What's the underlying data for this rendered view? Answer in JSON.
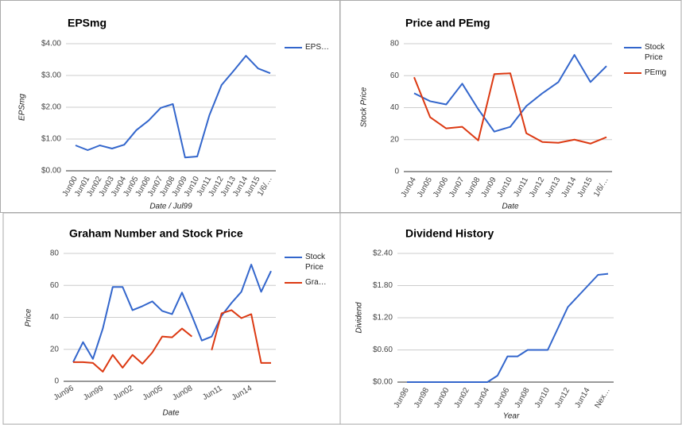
{
  "chart_data": [
    {
      "type": "line",
      "title": "EPSmg",
      "x_label": "Date / Jul99",
      "y_label": "EPSmg",
      "categories": [
        "Jun00",
        "Jun01",
        "Jun02",
        "Jun03",
        "Jun04",
        "Jun05",
        "Jun06",
        "Jun07",
        "Jun08",
        "Jun09",
        "Jun10",
        "Jun11",
        "Jun12",
        "Jun13",
        "Jun14",
        "Jun15",
        "1/6/…"
      ],
      "series": [
        {
          "name": "EPS…",
          "color": "#3366cc",
          "values": [
            0.8,
            0.65,
            0.8,
            0.7,
            0.82,
            1.28,
            1.58,
            1.98,
            2.1,
            0.42,
            0.45,
            1.75,
            2.7,
            3.15,
            3.62,
            3.22,
            3.07
          ]
        }
      ],
      "ylim": [
        0,
        4
      ],
      "yticks": [
        {
          "value": 0,
          "label": "$0.00"
        },
        {
          "value": 1,
          "label": "$1.00"
        },
        {
          "value": 2,
          "label": "$2.00"
        },
        {
          "value": 3,
          "label": "$3.00"
        },
        {
          "value": 4,
          "label": "$4.00"
        }
      ],
      "grid": true,
      "legend": "right"
    },
    {
      "type": "line",
      "title": "Price and PEmg",
      "x_label": "Date",
      "y_label": "Stock Price",
      "categories": [
        "Jun04",
        "Jun05",
        "Jun06",
        "Jun07",
        "Jun08",
        "Jun09",
        "Jun10",
        "Jun11",
        "Jun12",
        "Jun13",
        "Jun14",
        "Jun15",
        "1/6/…"
      ],
      "series": [
        {
          "name": "Stock Price",
          "color": "#3366cc",
          "values": [
            49,
            44,
            42,
            55,
            39,
            25,
            28,
            41,
            49,
            56,
            73,
            56,
            66
          ]
        },
        {
          "name": "PEmg",
          "color": "#dc3912",
          "values": [
            59,
            34,
            27,
            28,
            19.5,
            61,
            61.5,
            24,
            18.5,
            18,
            20,
            17.5,
            21.5
          ]
        }
      ],
      "ylim": [
        0,
        80
      ],
      "yticks": [
        0,
        20,
        40,
        60,
        80
      ],
      "grid": true,
      "legend": "right"
    },
    {
      "type": "line",
      "title": "Graham Number and Stock Price",
      "x_label": "Date",
      "y_label": "Price",
      "categories": [
        "Jun96",
        null,
        null,
        "Jun99",
        null,
        null,
        "Jun02",
        null,
        null,
        "Jun05",
        null,
        null,
        "Jun08",
        null,
        null,
        "Jun11",
        null,
        null,
        "Jun14",
        null,
        null
      ],
      "series": [
        {
          "name": "Stock Price",
          "color": "#3366cc",
          "values": [
            12,
            24.5,
            14,
            33,
            59,
            59,
            44.5,
            47,
            50,
            44,
            42,
            55.5,
            41,
            25.5,
            28,
            41,
            49,
            56,
            73,
            56,
            69
          ]
        },
        {
          "name": "Gra…",
          "color": "#dc3912",
          "values": [
            12,
            12,
            11.5,
            6,
            16.5,
            8.5,
            16.5,
            11,
            18,
            28,
            27.5,
            33,
            28,
            null,
            19.5,
            42.5,
            44.5,
            39.5,
            42,
            11.5,
            11.5
          ]
        }
      ],
      "ylim": [
        0,
        80
      ],
      "yticks": [
        0,
        20,
        40,
        60,
        80
      ],
      "grid": true,
      "legend": "right"
    },
    {
      "type": "line",
      "title": "Dividend History",
      "x_label": "Year",
      "y_label": "Dividend",
      "categories": [
        "Jun96",
        null,
        "Jun98",
        null,
        "Jun00",
        null,
        "Jun02",
        null,
        "Jun04",
        null,
        "Jun06",
        null,
        "Jun08",
        null,
        "Jun10",
        null,
        "Jun12",
        null,
        "Jun14",
        null,
        "Nex…"
      ],
      "values": [
        0,
        0,
        0,
        0,
        0,
        0,
        0,
        0,
        0,
        0.12,
        0.48,
        0.48,
        0.6,
        0.6,
        0.6,
        1.0,
        1.4,
        1.6,
        1.8,
        2.0,
        2.02
      ],
      "color": "#3366cc",
      "ylim": [
        0,
        2.4
      ],
      "yticks": [
        {
          "value": 0,
          "label": "$0.00"
        },
        {
          "value": 0.6,
          "label": "$0.60"
        },
        {
          "value": 1.2,
          "label": "$1.20"
        },
        {
          "value": 1.8,
          "label": "$1.80"
        },
        {
          "value": 2.4,
          "label": "$2.40"
        }
      ],
      "grid": true
    }
  ]
}
